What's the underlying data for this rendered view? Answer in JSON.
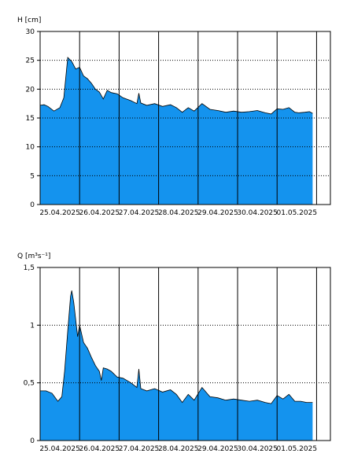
{
  "chart_data": [
    {
      "type": "area",
      "ylabel": "H [cm]",
      "ylim": [
        0,
        30
      ],
      "yticks": [
        "0",
        "5",
        "10",
        "15",
        "20",
        "25",
        "30"
      ],
      "ytick_values": [
        0,
        5,
        10,
        15,
        20,
        25,
        30
      ],
      "xticks": [
        "25.04.2025",
        "26.04.2025",
        "27.04.2025",
        "28.04.2025",
        "29.04.2025",
        "30.04.2025",
        "01.05.2025"
      ],
      "xlim_days": [
        0,
        7.35
      ],
      "grid": "dotted-horizontal-solid-vertical",
      "fill_color": "#1493ee",
      "line_color": "#000000",
      "x_days": [
        0,
        0.1,
        0.2,
        0.35,
        0.5,
        0.6,
        0.7,
        0.8,
        0.9,
        1.0,
        1.1,
        1.2,
        1.3,
        1.4,
        1.5,
        1.6,
        1.7,
        1.8,
        1.95,
        2.1,
        2.3,
        2.45,
        2.5,
        2.55,
        2.7,
        2.9,
        3.1,
        3.3,
        3.45,
        3.6,
        3.75,
        3.9,
        4.1,
        4.3,
        4.5,
        4.7,
        4.9,
        5.1,
        5.3,
        5.5,
        5.7,
        5.85,
        6.0,
        6.15,
        6.3,
        6.45,
        6.55,
        6.7,
        6.82,
        6.9
      ],
      "values": [
        17.2,
        17.3,
        17.0,
        16.2,
        16.8,
        18.5,
        25.5,
        24.8,
        23.5,
        23.8,
        22.3,
        21.8,
        21.0,
        20.0,
        19.5,
        18.3,
        19.8,
        19.4,
        19.2,
        18.5,
        18.0,
        17.5,
        19.3,
        17.6,
        17.2,
        17.5,
        17.0,
        17.3,
        16.8,
        16.0,
        16.8,
        16.2,
        17.5,
        16.5,
        16.3,
        16.0,
        16.2,
        16.0,
        16.1,
        16.3,
        15.9,
        15.7,
        16.6,
        16.5,
        16.8,
        16.0,
        15.9,
        16.0,
        16.1,
        15.8
      ]
    },
    {
      "type": "area",
      "ylabel": "Q [m³s⁻¹]",
      "ylim": [
        0,
        1.5
      ],
      "yticks": [
        "0",
        "0,5",
        "1",
        "1,5"
      ],
      "ytick_values": [
        0,
        0.5,
        1,
        1.5
      ],
      "xticks": [
        "25.04.2025",
        "26.04.2025",
        "27.04.2025",
        "28.04.2025",
        "29.04.2025",
        "30.04.2025",
        "01.05.2025"
      ],
      "xlim_days": [
        0,
        7.35
      ],
      "grid": "dotted-horizontal-solid-vertical",
      "fill_color": "#1493ee",
      "line_color": "#000000",
      "x_days": [
        0,
        0.15,
        0.3,
        0.45,
        0.55,
        0.62,
        0.7,
        0.77,
        0.8,
        0.85,
        0.95,
        1.0,
        1.1,
        1.2,
        1.3,
        1.4,
        1.5,
        1.55,
        1.6,
        1.7,
        1.8,
        1.95,
        2.1,
        2.3,
        2.45,
        2.5,
        2.55,
        2.7,
        2.9,
        3.1,
        3.3,
        3.45,
        3.6,
        3.75,
        3.9,
        4.1,
        4.3,
        4.5,
        4.7,
        4.9,
        5.1,
        5.3,
        5.5,
        5.7,
        5.85,
        6.0,
        6.15,
        6.3,
        6.45,
        6.6,
        6.75,
        6.9
      ],
      "values": [
        0.43,
        0.43,
        0.41,
        0.34,
        0.38,
        0.6,
        0.95,
        1.25,
        1.3,
        1.2,
        0.9,
        1.0,
        0.85,
        0.8,
        0.72,
        0.65,
        0.6,
        0.52,
        0.63,
        0.62,
        0.6,
        0.55,
        0.54,
        0.5,
        0.46,
        0.62,
        0.45,
        0.43,
        0.45,
        0.42,
        0.44,
        0.4,
        0.33,
        0.4,
        0.35,
        0.46,
        0.38,
        0.37,
        0.35,
        0.36,
        0.35,
        0.34,
        0.35,
        0.33,
        0.32,
        0.39,
        0.36,
        0.4,
        0.34,
        0.34,
        0.33,
        0.33
      ]
    }
  ]
}
